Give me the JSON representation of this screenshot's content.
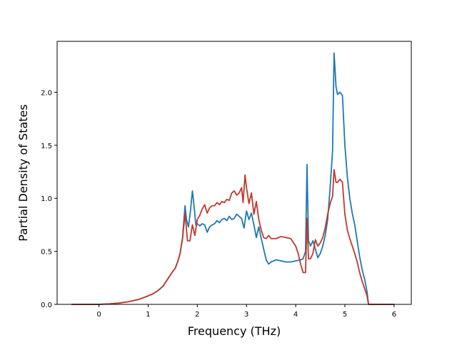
{
  "chart_data": {
    "type": "line",
    "title": "",
    "xlabel": "Frequency (THz)",
    "ylabel": "Partial Density of States",
    "xlim": [
      -0.85,
      6.35
    ],
    "ylim": [
      0.0,
      2.48
    ],
    "xticks": [
      0,
      1,
      2,
      3,
      4,
      5,
      6
    ],
    "xtick_labels": [
      "0",
      "1",
      "2",
      "3",
      "4",
      "5",
      "6"
    ],
    "yticks": [
      0.0,
      0.5,
      1.0,
      1.5,
      2.0
    ],
    "ytick_labels": [
      "0.0",
      "0.5",
      "1.0",
      "1.5",
      "2.0"
    ],
    "grid": false,
    "legend": "none",
    "series": [
      {
        "color": "#1f77b4",
        "points": [
          [
            -0.55,
            0.0
          ],
          [
            0.0,
            0.0
          ],
          [
            0.2,
            0.004
          ],
          [
            0.4,
            0.012
          ],
          [
            0.6,
            0.025
          ],
          [
            0.8,
            0.045
          ],
          [
            1.0,
            0.08
          ],
          [
            1.1,
            0.1
          ],
          [
            1.2,
            0.13
          ],
          [
            1.3,
            0.17
          ],
          [
            1.4,
            0.24
          ],
          [
            1.5,
            0.31
          ],
          [
            1.55,
            0.34
          ],
          [
            1.6,
            0.4
          ],
          [
            1.65,
            0.48
          ],
          [
            1.7,
            0.63
          ],
          [
            1.75,
            0.93
          ],
          [
            1.78,
            0.8
          ],
          [
            1.82,
            0.73
          ],
          [
            1.86,
            0.88
          ],
          [
            1.9,
            1.07
          ],
          [
            1.94,
            0.9
          ],
          [
            1.97,
            0.75
          ],
          [
            2.0,
            0.76
          ],
          [
            2.05,
            0.74
          ],
          [
            2.1,
            0.76
          ],
          [
            2.15,
            0.75
          ],
          [
            2.2,
            0.68
          ],
          [
            2.25,
            0.73
          ],
          [
            2.3,
            0.75
          ],
          [
            2.35,
            0.76
          ],
          [
            2.4,
            0.79
          ],
          [
            2.45,
            0.77
          ],
          [
            2.5,
            0.8
          ],
          [
            2.55,
            0.81
          ],
          [
            2.6,
            0.79
          ],
          [
            2.65,
            0.83
          ],
          [
            2.7,
            0.8
          ],
          [
            2.75,
            0.81
          ],
          [
            2.8,
            0.85
          ],
          [
            2.85,
            0.83
          ],
          [
            2.9,
            0.81
          ],
          [
            2.95,
            0.72
          ],
          [
            3.0,
            0.88
          ],
          [
            3.05,
            0.8
          ],
          [
            3.1,
            0.86
          ],
          [
            3.15,
            0.75
          ],
          [
            3.2,
            0.63
          ],
          [
            3.25,
            0.73
          ],
          [
            3.3,
            0.62
          ],
          [
            3.35,
            0.52
          ],
          [
            3.4,
            0.42
          ],
          [
            3.45,
            0.38
          ],
          [
            3.5,
            0.4
          ],
          [
            3.6,
            0.42
          ],
          [
            3.7,
            0.41
          ],
          [
            3.8,
            0.4
          ],
          [
            3.9,
            0.4
          ],
          [
            4.0,
            0.41
          ],
          [
            4.1,
            0.42
          ],
          [
            4.15,
            0.43
          ],
          [
            4.2,
            0.5
          ],
          [
            4.23,
            1.32
          ],
          [
            4.26,
            0.6
          ],
          [
            4.3,
            0.55
          ],
          [
            4.35,
            0.6
          ],
          [
            4.4,
            0.52
          ],
          [
            4.45,
            0.44
          ],
          [
            4.5,
            0.48
          ],
          [
            4.55,
            0.55
          ],
          [
            4.6,
            0.65
          ],
          [
            4.65,
            0.8
          ],
          [
            4.7,
            1.1
          ],
          [
            4.75,
            1.45
          ],
          [
            4.78,
            2.37
          ],
          [
            4.82,
            2.05
          ],
          [
            4.85,
            1.98
          ],
          [
            4.9,
            2.0
          ],
          [
            4.95,
            1.97
          ],
          [
            5.0,
            1.5
          ],
          [
            5.05,
            1.2
          ],
          [
            5.1,
            1.0
          ],
          [
            5.15,
            0.86
          ],
          [
            5.2,
            0.75
          ],
          [
            5.25,
            0.6
          ],
          [
            5.3,
            0.45
          ],
          [
            5.35,
            0.33
          ],
          [
            5.4,
            0.24
          ],
          [
            5.45,
            0.12
          ],
          [
            5.48,
            0.0
          ],
          [
            6.0,
            0.0
          ]
        ]
      },
      {
        "color": "#c0392b",
        "points": [
          [
            -0.55,
            0.0
          ],
          [
            0.0,
            0.0
          ],
          [
            0.2,
            0.004
          ],
          [
            0.4,
            0.012
          ],
          [
            0.6,
            0.025
          ],
          [
            0.8,
            0.045
          ],
          [
            1.0,
            0.08
          ],
          [
            1.1,
            0.1
          ],
          [
            1.2,
            0.13
          ],
          [
            1.3,
            0.17
          ],
          [
            1.4,
            0.24
          ],
          [
            1.5,
            0.31
          ],
          [
            1.55,
            0.34
          ],
          [
            1.6,
            0.4
          ],
          [
            1.65,
            0.48
          ],
          [
            1.7,
            0.62
          ],
          [
            1.75,
            0.86
          ],
          [
            1.8,
            0.6
          ],
          [
            1.85,
            0.6
          ],
          [
            1.9,
            0.75
          ],
          [
            1.95,
            0.65
          ],
          [
            2.0,
            0.8
          ],
          [
            2.05,
            0.84
          ],
          [
            2.1,
            0.9
          ],
          [
            2.15,
            0.94
          ],
          [
            2.2,
            0.86
          ],
          [
            2.25,
            0.91
          ],
          [
            2.3,
            0.93
          ],
          [
            2.35,
            0.93
          ],
          [
            2.4,
            0.96
          ],
          [
            2.45,
            0.94
          ],
          [
            2.5,
            0.97
          ],
          [
            2.55,
            0.96
          ],
          [
            2.6,
            0.99
          ],
          [
            2.65,
            0.98
          ],
          [
            2.7,
            1.05
          ],
          [
            2.75,
            1.07
          ],
          [
            2.8,
            1.03
          ],
          [
            2.85,
            1.05
          ],
          [
            2.9,
            1.1
          ],
          [
            2.93,
            0.96
          ],
          [
            2.97,
            1.22
          ],
          [
            3.0,
            1.1
          ],
          [
            3.05,
            0.95
          ],
          [
            3.1,
            1.05
          ],
          [
            3.15,
            0.85
          ],
          [
            3.2,
            0.97
          ],
          [
            3.25,
            0.8
          ],
          [
            3.3,
            0.7
          ],
          [
            3.35,
            0.63
          ],
          [
            3.4,
            0.62
          ],
          [
            3.45,
            0.65
          ],
          [
            3.5,
            0.62
          ],
          [
            3.6,
            0.62
          ],
          [
            3.7,
            0.64
          ],
          [
            3.8,
            0.63
          ],
          [
            3.9,
            0.62
          ],
          [
            4.0,
            0.55
          ],
          [
            4.05,
            0.48
          ],
          [
            4.1,
            0.38
          ],
          [
            4.15,
            0.3
          ],
          [
            4.2,
            0.3
          ],
          [
            4.23,
            0.81
          ],
          [
            4.26,
            0.43
          ],
          [
            4.3,
            0.43
          ],
          [
            4.35,
            0.48
          ],
          [
            4.4,
            0.61
          ],
          [
            4.45,
            0.55
          ],
          [
            4.5,
            0.58
          ],
          [
            4.55,
            0.63
          ],
          [
            4.6,
            0.72
          ],
          [
            4.65,
            0.85
          ],
          [
            4.7,
            0.95
          ],
          [
            4.75,
            1.02
          ],
          [
            4.78,
            1.27
          ],
          [
            4.82,
            1.15
          ],
          [
            4.85,
            1.15
          ],
          [
            4.9,
            1.18
          ],
          [
            4.95,
            1.15
          ],
          [
            5.0,
            0.85
          ],
          [
            5.05,
            0.7
          ],
          [
            5.1,
            0.62
          ],
          [
            5.15,
            0.55
          ],
          [
            5.2,
            0.48
          ],
          [
            5.25,
            0.4
          ],
          [
            5.3,
            0.3
          ],
          [
            5.35,
            0.22
          ],
          [
            5.4,
            0.15
          ],
          [
            5.45,
            0.08
          ],
          [
            5.48,
            0.0
          ],
          [
            6.0,
            0.0
          ]
        ]
      }
    ]
  }
}
